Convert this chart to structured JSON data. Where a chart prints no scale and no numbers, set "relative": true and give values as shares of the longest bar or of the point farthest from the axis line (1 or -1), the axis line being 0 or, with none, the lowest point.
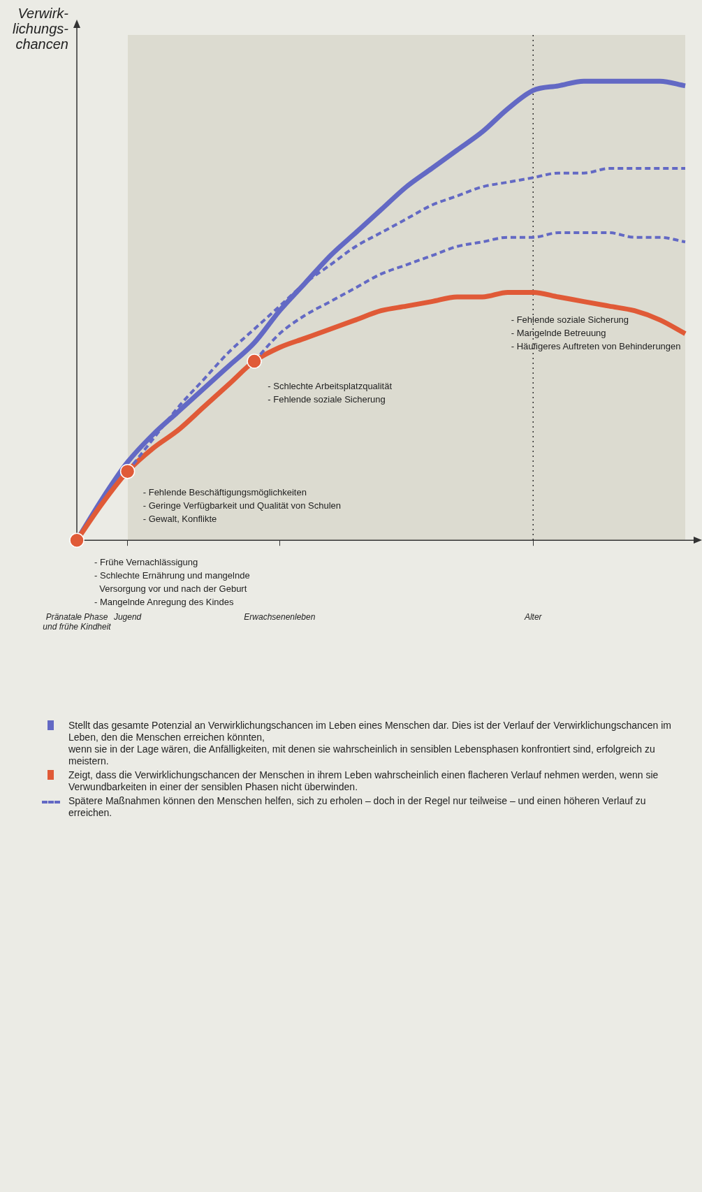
{
  "chart_data": {
    "type": "line",
    "relative": true,
    "ylabel": "Verwirk-\nlichungs-\nchancen",
    "categories": [
      "Pränatale Phase\nund frühe Kindheit",
      null,
      "Jugend",
      null,
      null,
      null,
      null,
      null,
      "Erwachsenenleben",
      null,
      null,
      null,
      null,
      null,
      null,
      null,
      null,
      null,
      "Alter",
      null,
      null,
      null,
      null,
      null,
      null
    ],
    "legend": "bottom",
    "grid": false,
    "marker": "none",
    "ref_lines": [
      {
        "axis": "x",
        "value": "Alter",
        "line_style": "dotted",
        "color": "#333333"
      }
    ],
    "annotations": [
      "- Frühe Vernachlässigung\n- Schlechte Ernährung und mangelnde\n  Versorgung vor und nach der Geburt\n- Mangelnde Anregung des Kindes",
      "- Fehlende Beschäftigungsmöglichkeiten\n- Geringe Verfügbarkeit und Qualität von Schulen\n- Gewalt, Konflikte",
      "- Schlechte Arbeitsplatzqualität\n- Fehlende soziale Sicherung",
      "- Fehlende soziale Sicherung\n- Mangelnde Betreuung\n- Häufigeres Auftreten von Behinderungen"
    ],
    "series": [
      {
        "name": "Stellt das gesamte Potenzial an Verwirklichungschancen im Leben eines Menschen dar. Dies ist der Verlauf der Verwirklichungschancen im Leben, den die Menschen erreichen könnten,\nwenn sie in der Lage wären, die Anfälligkeiten, mit denen sie wahrscheinlich in sensiblen Lebensphasen konfrontiert sind, erfolgreich zu meistern.",
        "color": "#6369c4",
        "type": "line",
        "line_style": "solid",
        "values": [
          0,
          0.09,
          0.17,
          0.23,
          0.28,
          0.33,
          0.38,
          0.43,
          0.5,
          0.56,
          0.62,
          0.67,
          0.72,
          0.77,
          0.81,
          0.85,
          0.89,
          0.94,
          0.98,
          0.99,
          1,
          1,
          1,
          1,
          0.99
        ]
      },
      {
        "name": "Zeigt, dass die Verwirklichungschancen der Menschen in ihrem Leben wahrscheinlich einen flacheren Verlauf nehmen werden, wenn sie Verwundbarkeiten in einer der sensiblen Phasen nicht überwinden.",
        "color": "#e05a37",
        "type": "line",
        "line_style": "solid",
        "values": [
          0,
          0.08,
          0.15,
          0.2,
          0.24,
          0.29,
          0.34,
          0.39,
          0.42,
          0.44,
          0.46,
          0.48,
          0.5,
          0.51,
          0.52,
          0.53,
          0.53,
          0.54,
          0.54,
          0.53,
          0.52,
          0.51,
          0.5,
          0.48,
          0.45
        ]
      },
      {
        "name": "Spätere Maßnahmen können den Menschen helfen, sich zu erholen – doch in der Regel nur teilweise – und einen höheren Verlauf zu erreichen.",
        "color": "#6369c4",
        "type": "line",
        "line_style": "dashed",
        "values": [
          null,
          null,
          0.15,
          0.22,
          0.29,
          0.35,
          0.41,
          0.46,
          0.51,
          0.56,
          0.6,
          0.64,
          0.67,
          0.7,
          0.73,
          0.75,
          0.77,
          0.78,
          0.79,
          0.8,
          0.8,
          0.81,
          0.81,
          0.81,
          0.81
        ]
      },
      {
        "color": "#6369c4",
        "type": "line",
        "line_style": "dashed",
        "values": [
          null,
          null,
          null,
          null,
          null,
          null,
          null,
          0.39,
          0.45,
          0.49,
          0.52,
          0.55,
          0.58,
          0.6,
          0.62,
          0.64,
          0.65,
          0.66,
          0.66,
          0.67,
          0.67,
          0.67,
          0.66,
          0.66,
          0.65
        ]
      },
      {
        "color": "#e05a37",
        "type": "scatter",
        "marker": "circle",
        "values": [
          0,
          null,
          0.15,
          null,
          null,
          null,
          null,
          0.39,
          null,
          null,
          null,
          null,
          null,
          null,
          null,
          null,
          null,
          null,
          null,
          null,
          null,
          null,
          null,
          null,
          null
        ]
      }
    ]
  }
}
